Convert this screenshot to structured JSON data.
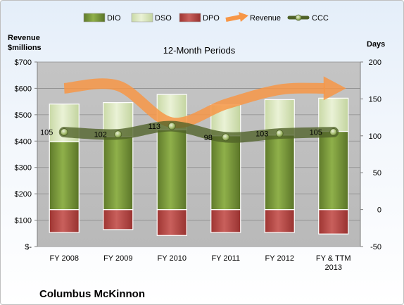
{
  "chart_data": {
    "type": "bar",
    "title": "12-Month Periods",
    "company": "Columbus McKinnon",
    "left_axis_label": [
      "Revenue",
      "$millions"
    ],
    "right_axis_label": "Days",
    "categories": [
      [
        "FY 2008"
      ],
      [
        "FY 2009"
      ],
      [
        "FY 2010"
      ],
      [
        "FY 2011"
      ],
      [
        "FY 2012"
      ],
      [
        "FY & TTM",
        "2013"
      ]
    ],
    "left_ticks": [
      "$-",
      "$100",
      "$200",
      "$300",
      "$400",
      "$500",
      "$600",
      "$700"
    ],
    "left_range": [
      0,
      700
    ],
    "right_ticks": [
      "-50",
      "0",
      "50",
      "100",
      "150",
      "200"
    ],
    "right_range": [
      -50,
      200
    ],
    "legend": [
      {
        "key": "dio",
        "label": "DIO"
      },
      {
        "key": "dso",
        "label": "DSO"
      },
      {
        "key": "dpo",
        "label": "DPO"
      },
      {
        "key": "revenue",
        "label": "Revenue"
      },
      {
        "key": "ccc",
        "label": "CCC"
      }
    ],
    "legend_placement": "top",
    "series": [
      {
        "name": "DIO",
        "axis": "days",
        "values": [
          92,
          99,
          108,
          100,
          101,
          106
        ]
      },
      {
        "name": "DSO",
        "axis": "days",
        "values": [
          51,
          46,
          48,
          42,
          48,
          45
        ]
      },
      {
        "name": "DPO",
        "axis": "days",
        "values": [
          -31,
          -27,
          -35,
          -31,
          -31,
          -33
        ]
      },
      {
        "name": "Revenue",
        "axis": "revenue",
        "values": [
          600,
          610,
          470,
          540,
          595,
          600
        ]
      },
      {
        "name": "CCC",
        "axis": "days",
        "values": [
          105,
          102,
          113,
          98,
          103,
          105
        ]
      }
    ],
    "ccc_labels": [
      "105",
      "102",
      "113",
      "98",
      "103",
      "105"
    ],
    "colors": {
      "dio": "#77933c",
      "dso": "#d7e4bd",
      "dpo": "#c0504d",
      "revenue": "#f79646",
      "ccc": "#4f6228",
      "plot_bg": "#bfbfbf"
    }
  }
}
